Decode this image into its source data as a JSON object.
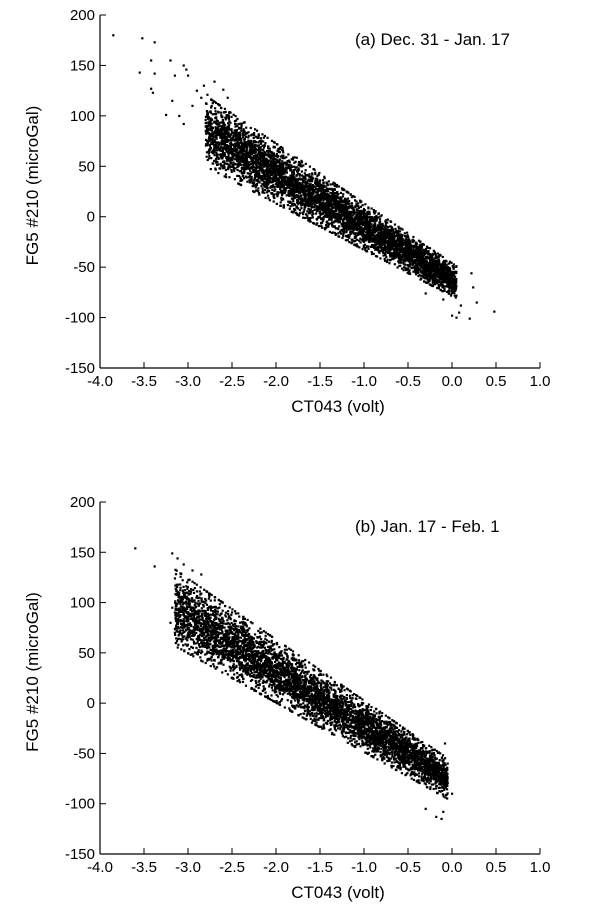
{
  "chart_data": [
    {
      "type": "scatter",
      "annotation": "(a)  Dec. 31 - Jan. 17",
      "xlabel": "CT043 (volt)",
      "ylabel": "FG5 #210 (microGal)",
      "xlim": [
        -4.0,
        1.0
      ],
      "ylim": [
        -150,
        200
      ],
      "xticks": [
        "-4.0",
        "-3.5",
        "-3.0",
        "-2.5",
        "-2.0",
        "-1.5",
        "-1.0",
        "-0.5",
        "0.0",
        "0.5",
        "1.0"
      ],
      "yticks": [
        "-150",
        "-100",
        "-50",
        "0",
        "50",
        "100",
        "150",
        "200"
      ],
      "grid": false,
      "marker_color": "#000000",
      "points": [
        [
          -3.85,
          180
        ],
        [
          -3.52,
          177
        ],
        [
          -3.38,
          173
        ],
        [
          -3.55,
          143
        ],
        [
          -3.42,
          155
        ],
        [
          -3.38,
          142
        ],
        [
          -3.42,
          127
        ],
        [
          -3.4,
          123
        ],
        [
          -3.25,
          101
        ],
        [
          -3.2,
          155
        ],
        [
          -3.15,
          140
        ],
        [
          -3.05,
          150
        ],
        [
          -3.02,
          146
        ],
        [
          -3.0,
          140
        ],
        [
          -3.18,
          115
        ],
        [
          -3.1,
          100
        ],
        [
          -3.05,
          92
        ],
        [
          -2.95,
          110
        ],
        [
          -2.9,
          125
        ],
        [
          -2.85,
          118
        ],
        [
          -2.82,
          130
        ],
        [
          -2.78,
          121
        ],
        [
          -2.8,
          96
        ],
        [
          -2.75,
          78
        ],
        [
          -2.7,
          134
        ],
        [
          -2.6,
          126
        ],
        [
          -2.55,
          118
        ],
        [
          -0.3,
          -76
        ],
        [
          -0.1,
          -82
        ],
        [
          0.0,
          -98
        ],
        [
          0.05,
          -100
        ],
        [
          0.08,
          -95
        ],
        [
          0.1,
          -88
        ],
        [
          0.2,
          -101
        ],
        [
          0.22,
          -56
        ],
        [
          0.24,
          -70
        ],
        [
          0.28,
          -85
        ],
        [
          0.48,
          -94
        ],
        [
          -0.15,
          -45
        ],
        [
          0.02,
          -50
        ]
      ],
      "cloud": {
        "x_range": [
          -2.8,
          0.05
        ],
        "trend_at_x_min": 85,
        "trend_at_x_max": -65,
        "spread": [
          35,
          16
        ]
      }
    },
    {
      "type": "scatter",
      "annotation": "(b)  Jan. 17 - Feb. 1",
      "xlabel": "CT043 (volt)",
      "ylabel": "FG5 #210 (microGal)",
      "xlim": [
        -4.0,
        1.0
      ],
      "ylim": [
        -150,
        200
      ],
      "xticks": [
        "-4.0",
        "-3.5",
        "-3.0",
        "-2.5",
        "-2.0",
        "-1.5",
        "-1.0",
        "-0.5",
        "0.0",
        "0.5",
        "1.0"
      ],
      "yticks": [
        "-150",
        "-100",
        "-50",
        "0",
        "50",
        "100",
        "150",
        "200"
      ],
      "grid": false,
      "marker_color": "#000000",
      "points": [
        [
          -3.6,
          154
        ],
        [
          -3.38,
          136
        ],
        [
          -3.18,
          149
        ],
        [
          -3.12,
          144
        ],
        [
          -3.2,
          80
        ],
        [
          -3.18,
          95
        ],
        [
          -3.15,
          70
        ],
        [
          -3.05,
          138
        ],
        [
          -2.95,
          132
        ],
        [
          -2.85,
          128
        ],
        [
          -2.9,
          50
        ],
        [
          -2.8,
          40
        ],
        [
          -0.12,
          -115
        ],
        [
          -0.1,
          -108
        ],
        [
          -0.18,
          -113
        ],
        [
          -0.05,
          -60
        ],
        [
          -0.08,
          -40
        ],
        [
          -0.35,
          -45
        ],
        [
          -0.3,
          -105
        ],
        [
          0.0,
          -90
        ]
      ],
      "cloud": {
        "x_range": [
          -3.15,
          -0.05
        ],
        "trend_at_x_min": 95,
        "trend_at_x_max": -75,
        "spread": [
          38,
          20
        ]
      }
    }
  ]
}
